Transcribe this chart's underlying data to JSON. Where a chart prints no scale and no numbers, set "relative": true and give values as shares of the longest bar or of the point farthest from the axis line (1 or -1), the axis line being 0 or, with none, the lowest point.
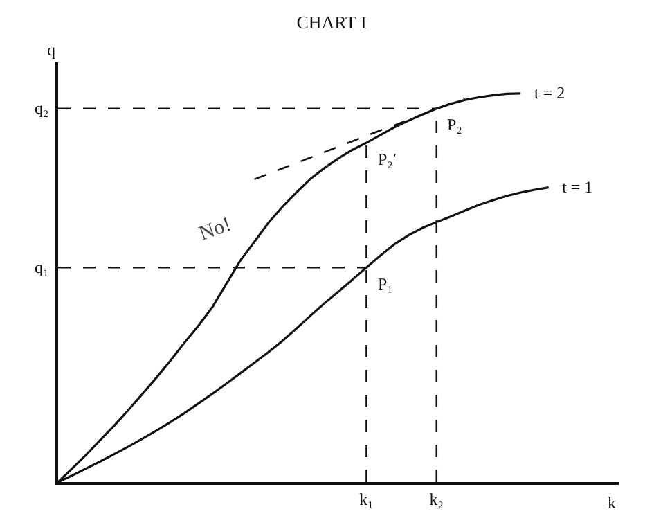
{
  "chart_data": {
    "type": "line",
    "title": "CHART I",
    "xlabel": "k",
    "ylabel": "q",
    "relative": true,
    "legend": false,
    "marker": "none",
    "line_style": "solid",
    "categories": [
      null,
      null,
      null,
      null,
      null,
      null,
      null,
      null,
      null,
      null,
      null,
      null,
      null,
      null,
      null,
      null,
      null,
      null,
      null,
      null,
      null,
      null,
      "k₁",
      null,
      null,
      null,
      null,
      "k₂",
      null,
      null,
      null,
      null,
      null,
      null,
      null,
      null,
      null,
      null,
      null,
      null,
      null
    ],
    "series": [
      {
        "name": "t = 2",
        "color": "#111111",
        "values": [
          0,
          0.035,
          0.07,
          0.108,
          0.145,
          0.185,
          0.226,
          0.268,
          0.312,
          0.358,
          0.402,
          0.45,
          0.51,
          0.57,
          0.618,
          0.667,
          0.708,
          0.745,
          0.78,
          0.808,
          0.833,
          0.855,
          0.873,
          0.893,
          0.913,
          0.93,
          0.946,
          0.961,
          0.973,
          0.983,
          0.99,
          0.995,
          0.999,
          1.0,
          null,
          null,
          null,
          null,
          null,
          null,
          null
        ]
      },
      {
        "name": "t = 1",
        "color": "#111111",
        "values": [
          0,
          0.017,
          0.035,
          0.053,
          0.072,
          0.091,
          0.111,
          0.132,
          0.154,
          0.177,
          0.202,
          0.227,
          0.253,
          0.28,
          0.307,
          0.334,
          0.363,
          0.395,
          0.428,
          0.46,
          0.49,
          0.521,
          0.552,
          0.583,
          0.612,
          0.635,
          0.654,
          0.669,
          0.683,
          0.698,
          0.713,
          0.725,
          0.736,
          0.745,
          0.752,
          0.758,
          null,
          null,
          null,
          null,
          null
        ]
      },
      {
        "name": "q₂",
        "color": "#111111",
        "line_style": "dashed",
        "values": [
          0.961,
          0.961,
          0.961,
          0.961,
          0.961,
          0.961,
          0.961,
          0.961,
          0.961,
          0.961,
          0.961,
          0.961,
          0.961,
          0.961,
          0.961,
          0.961,
          0.961,
          0.961,
          0.961,
          0.961,
          0.961,
          0.961,
          0.961,
          0.961,
          0.961,
          0.961,
          0.961,
          0.961,
          null,
          null,
          null,
          null,
          null,
          null,
          null,
          null,
          null,
          null,
          null,
          null,
          null
        ]
      },
      {
        "name": "q₁",
        "color": "#111111",
        "line_style": "dashed",
        "values": [
          0.552,
          0.552,
          0.552,
          0.552,
          0.552,
          0.552,
          0.552,
          0.552,
          0.552,
          0.552,
          0.552,
          0.552,
          0.552,
          0.552,
          0.552,
          0.552,
          0.552,
          0.552,
          0.552,
          0.552,
          0.552,
          0.552,
          0.552,
          null,
          null,
          null,
          null,
          null,
          null,
          null,
          null,
          null,
          null,
          null,
          null,
          null,
          null,
          null,
          null,
          null,
          null
        ]
      },
      {
        "color": "#111111",
        "line_style": "dashed",
        "values": [
          null,
          null,
          null,
          null,
          null,
          null,
          null,
          null,
          null,
          null,
          null,
          null,
          null,
          null,
          0.779,
          0.793,
          0.807,
          0.821,
          0.835,
          0.849,
          0.863,
          0.877,
          0.891,
          0.905,
          0.918,
          0.932,
          0.946,
          0.96,
          0.974,
          0.988,
          null,
          null,
          null,
          null,
          null,
          null,
          null,
          null,
          null,
          null,
          null
        ]
      }
    ],
    "ref_lines": [
      {
        "axis": "x",
        "value": "k₁",
        "line_style": "dashed",
        "color": "#111111"
      },
      {
        "axis": "x",
        "value": "k₂",
        "line_style": "dashed",
        "color": "#111111"
      }
    ],
    "annotations": [
      {
        "text": "P₁",
        "x": "k₁",
        "y": 0.552
      },
      {
        "text": "P₂",
        "x": "k₂",
        "y": 0.961
      },
      {
        "text": "P₂′",
        "x": "k₁",
        "y": 0.873
      },
      "No!"
    ]
  }
}
